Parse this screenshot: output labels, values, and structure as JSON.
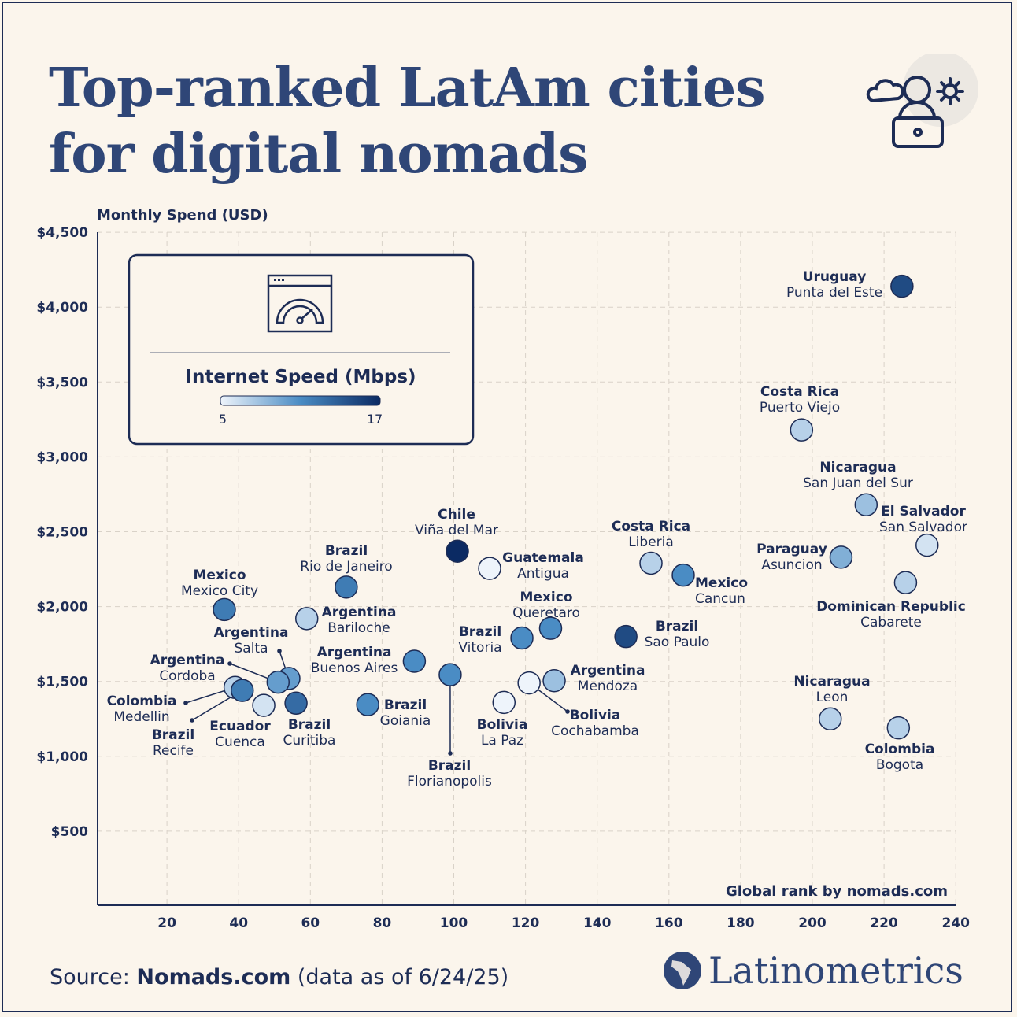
{
  "title_lines": [
    "Top-ranked LatAm cities",
    "for digital nomads"
  ],
  "source": {
    "prefix": "Source: ",
    "name": "Nomads.com",
    "suffix": " (data as of 6/24/25)"
  },
  "brand": "Latinometrics",
  "icons": {
    "header": "cloud-person-laptop-sun-icon",
    "legend": "browser-speedometer-icon",
    "brand": "latin-america-map-logo-icon"
  },
  "colors": {
    "title": "#2f4677",
    "text": "#1d2c55",
    "background": "#fbf5ec",
    "scale_low": "#eef4fb",
    "scale_high": "#0b2a63"
  },
  "chart_data": {
    "type": "scatter",
    "ylabel": "Monthly Spend (USD)",
    "xlabel": "Global rank by nomads.com",
    "xlim": [
      0,
      240
    ],
    "ylim": [
      0,
      4500
    ],
    "xticks": [
      20,
      40,
      60,
      80,
      100,
      120,
      140,
      160,
      180,
      200,
      220,
      240
    ],
    "yticks": [
      500,
      1000,
      1500,
      2000,
      2500,
      3000,
      3500,
      4000,
      4500
    ],
    "ytick_labels": [
      "$500",
      "$1,000",
      "$1,500",
      "$2,000",
      "$2,500",
      "$3,000",
      "$3,500",
      "$4,000",
      "$4,500"
    ],
    "grid": true,
    "color_legend": {
      "title": "Internet Speed (Mbps)",
      "min": 5,
      "max": 17,
      "min_label": "5",
      "max_label": "17",
      "placement": "top-left"
    },
    "points": [
      {
        "country": "Uruguay",
        "city": "Punta del Este",
        "rank": 225,
        "spend": 4140,
        "speed": 15
      },
      {
        "country": "Costa Rica",
        "city": "Puerto Viejo",
        "rank": 197,
        "spend": 3180,
        "speed": 7
      },
      {
        "country": "Nicaragua",
        "city": "San Juan del Sur",
        "rank": 215,
        "spend": 2680,
        "speed": 8
      },
      {
        "country": "El Salvador",
        "city": "San Salvador",
        "rank": 232,
        "spend": 2410,
        "speed": 6
      },
      {
        "country": "Paraguay",
        "city": "Asuncion",
        "rank": 208,
        "spend": 2330,
        "speed": 9
      },
      {
        "country": "Dominican Republic",
        "city": "Cabarete",
        "rank": 226,
        "spend": 2160,
        "speed": 7
      },
      {
        "country": "Nicaragua",
        "city": "Leon",
        "rank": 205,
        "spend": 1250,
        "speed": 7
      },
      {
        "country": "Colombia",
        "city": "Bogota",
        "rank": 224,
        "spend": 1190,
        "speed": 7
      },
      {
        "country": "Costa Rica",
        "city": "Liberia",
        "rank": 155,
        "spend": 2290,
        "speed": 7
      },
      {
        "country": "Mexico",
        "city": "Cancun",
        "rank": 164,
        "spend": 2210,
        "speed": 11
      },
      {
        "country": "Brazil",
        "city": "Sao Paulo",
        "rank": 148,
        "spend": 1800,
        "speed": 15
      },
      {
        "country": "Chile",
        "city": "Viña del Mar",
        "rank": 101,
        "spend": 2370,
        "speed": 17
      },
      {
        "country": "Guatemala",
        "city": "Antigua",
        "rank": 110,
        "spend": 2255,
        "speed": 5
      },
      {
        "country": "Mexico",
        "city": "Queretaro",
        "rank": 127,
        "spend": 1855,
        "speed": 11
      },
      {
        "country": "Brazil",
        "city": "Vitoria",
        "rank": 119,
        "spend": 1790,
        "speed": 11
      },
      {
        "country": "Argentina",
        "city": "Mendoza",
        "rank": 128,
        "spend": 1505,
        "speed": 8
      },
      {
        "country": "Bolivia",
        "city": "Cochabamba",
        "rank": 121,
        "spend": 1490,
        "speed": 5
      },
      {
        "country": "Bolivia",
        "city": "La Paz",
        "rank": 114,
        "spend": 1360,
        "speed": 5
      },
      {
        "country": "Brazil",
        "city": "Florianopolis",
        "rank": 99,
        "spend": 1545,
        "speed": 11
      },
      {
        "country": "Argentina",
        "city": "Buenos Aires",
        "rank": 89,
        "spend": 1635,
        "speed": 11
      },
      {
        "country": "Brazil",
        "city": "Goiania",
        "rank": 76,
        "spend": 1345,
        "speed": 11
      },
      {
        "country": "Brazil",
        "city": "Rio de Janeiro",
        "rank": 70,
        "spend": 2130,
        "speed": 12
      },
      {
        "country": "Argentina",
        "city": "Bariloche",
        "rank": 59,
        "spend": 1920,
        "speed": 7
      },
      {
        "country": "Mexico",
        "city": "Mexico City",
        "rank": 36,
        "spend": 1980,
        "speed": 12
      },
      {
        "country": "Argentina",
        "city": "Salta",
        "rank": 54,
        "spend": 1520,
        "speed": 10
      },
      {
        "country": "Argentina",
        "city": "Cordoba",
        "rank": 51,
        "spend": 1495,
        "speed": 10
      },
      {
        "country": "Brazil",
        "city": "Curitiba",
        "rank": 56,
        "spend": 1355,
        "speed": 13
      },
      {
        "country": "Ecuador",
        "city": "Cuenca",
        "rank": 47,
        "spend": 1340,
        "speed": 6
      },
      {
        "country": "Colombia",
        "city": "Medellin",
        "rank": 39,
        "spend": 1460,
        "speed": 7
      },
      {
        "country": "Brazil",
        "city": "Recife",
        "rank": 41,
        "spend": 1440,
        "speed": 12
      }
    ]
  }
}
